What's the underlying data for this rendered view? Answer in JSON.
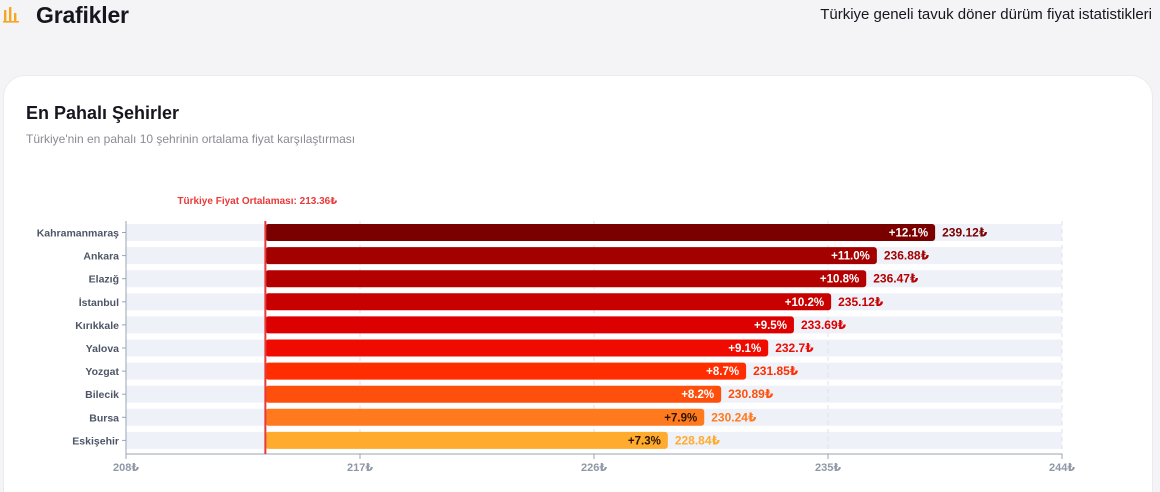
{
  "header": {
    "title": "Grafikler",
    "tagline": "Türkiye geneli tavuk döner dürüm fiyat istatistikleri",
    "icon": "bar-chart-icon",
    "accent": "#f5a623"
  },
  "card": {
    "title": "En Pahalı Şehirler",
    "subtitle": "Türkiye'nin en pahalı 10 şehrinin ortalama fiyat karşılaştırması"
  },
  "chart_data": {
    "type": "bar",
    "orientation": "horizontal",
    "categories": [
      "Kahramanmaraş",
      "Ankara",
      "Elazığ",
      "İstanbul",
      "Kırıkkale",
      "Yalova",
      "Yozgat",
      "Bilecik",
      "Bursa",
      "Eskişehir"
    ],
    "values": [
      239.12,
      236.88,
      236.47,
      235.12,
      233.69,
      232.7,
      231.85,
      230.89,
      230.24,
      228.84
    ],
    "value_labels": [
      "239.12₺",
      "236.88₺",
      "236.47₺",
      "235.12₺",
      "233.69₺",
      "232.7₺",
      "231.85₺",
      "230.89₺",
      "230.24₺",
      "228.84₺"
    ],
    "diff_labels": [
      "+12.1%",
      "+11.0%",
      "+10.8%",
      "+10.2%",
      "+9.5%",
      "+9.1%",
      "+8.7%",
      "+8.2%",
      "+7.9%",
      "+7.3%"
    ],
    "colors": [
      "#7a0000",
      "#a30000",
      "#b30000",
      "#c80000",
      "#dc0000",
      "#ef0b00",
      "#ff2d00",
      "#ff4f0c",
      "#ff7a1f",
      "#ffab2e"
    ],
    "diff_text_colors": [
      "#ffffff",
      "#ffffff",
      "#ffffff",
      "#ffffff",
      "#ffffff",
      "#ffffff",
      "#ffffff",
      "#ffffff",
      "#2b1500",
      "#2b1500"
    ],
    "xlim": [
      208,
      244
    ],
    "xticks": [
      208,
      217,
      226,
      235,
      244
    ],
    "xtick_labels": [
      "208₺",
      "217₺",
      "226₺",
      "235₺",
      "244₺"
    ],
    "reference": {
      "value": 213.36,
      "label": "Türkiye Fiyat Ortalaması: 213.36₺",
      "color": "#e83a3a"
    },
    "track_color": "#eef1f7",
    "grid": true
  }
}
